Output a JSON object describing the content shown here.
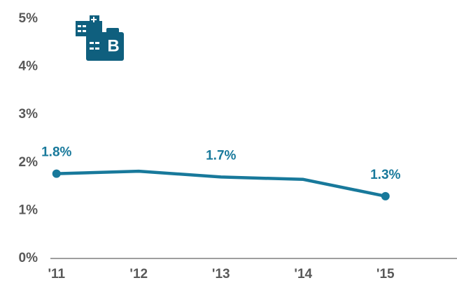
{
  "chart_data": {
    "type": "line",
    "categories": [
      "'11",
      "'12",
      "'13",
      "'14",
      "'15"
    ],
    "series": [
      {
        "name": null,
        "color": "#18799b",
        "values": [
          1.77,
          1.82,
          1.7,
          1.65,
          1.3
        ],
        "value_labels": [
          "1.8%",
          null,
          "1.7%",
          null,
          "1.3%"
        ]
      }
    ],
    "ylim": [
      0,
      5
    ],
    "yticks": [
      {
        "value": 0,
        "label": "0%"
      },
      {
        "value": 1,
        "label": "1%"
      },
      {
        "value": 2,
        "label": "2%"
      },
      {
        "value": 3,
        "label": "3%"
      },
      {
        "value": 4,
        "label": "4%"
      },
      {
        "value": 5,
        "label": "5%"
      }
    ],
    "grid": false
  }
}
